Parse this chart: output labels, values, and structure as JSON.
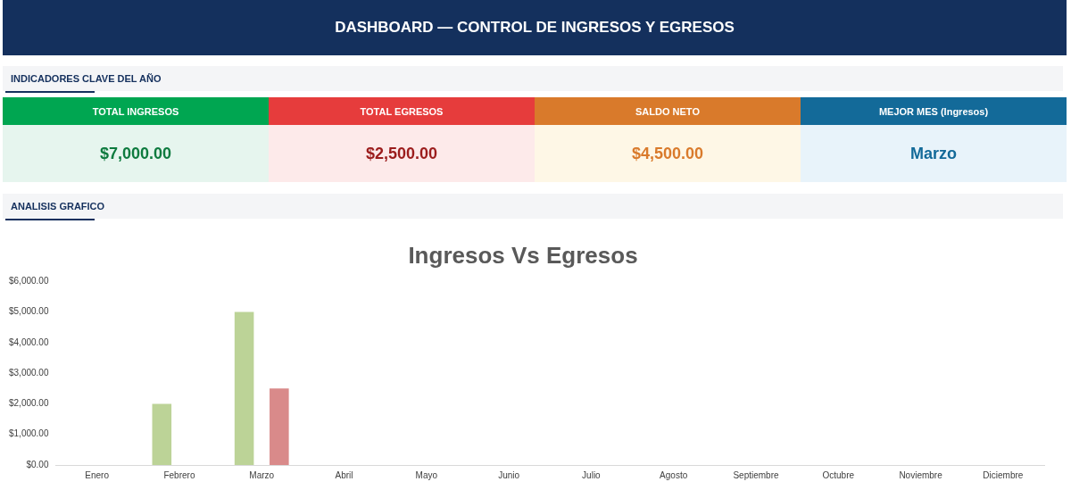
{
  "chart_data": [
    {
      "type": "other",
      "title": "DASHBOARD — CONTROL DE INGRESOS Y EGRESOS",
      "subtitle": "INDICADORES CLAVE DEL AÑO",
      "annotations": [
        "TOTAL INGRESOS",
        "$7,000.00",
        "TOTAL EGRESOS",
        "$2,500.00",
        "SALDO NETO",
        "$4,500.00",
        "MEJOR MES (Ingresos)",
        "Marzo"
      ]
    },
    {
      "type": "bar",
      "subtitle": "ANALISIS GRAFICO",
      "title": "Ingresos Vs Egresos",
      "categories": [
        "Enero",
        "Febrero",
        "Marzo",
        "Abril",
        "Mayo",
        "Junio",
        "Julio",
        "Agosto",
        "Septiembre",
        "Octubre",
        "Noviembre",
        "Diciembre"
      ],
      "series": [
        {
          "color": "#bcd397",
          "values": [
            0,
            2000,
            5000,
            0,
            0,
            0,
            0,
            0,
            0,
            0,
            0,
            0
          ]
        },
        {
          "color": "#d98a8a",
          "values": [
            0,
            0,
            2500,
            0,
            0,
            0,
            0,
            0,
            0,
            0,
            0,
            0
          ]
        }
      ],
      "ylim": [
        0,
        6000
      ],
      "yticks": [
        {
          "value": 0,
          "label": "$0.00"
        },
        {
          "value": 1000,
          "label": "$1,000.00"
        },
        {
          "value": 2000,
          "label": "$2,000.00"
        },
        {
          "value": 3000,
          "label": "$3,000.00"
        },
        {
          "value": 4000,
          "label": "$4,000.00"
        },
        {
          "value": 5000,
          "label": "$5,000.00"
        },
        {
          "value": 6000,
          "label": "$6,000.00"
        }
      ],
      "grid": false,
      "legend": false
    }
  ]
}
